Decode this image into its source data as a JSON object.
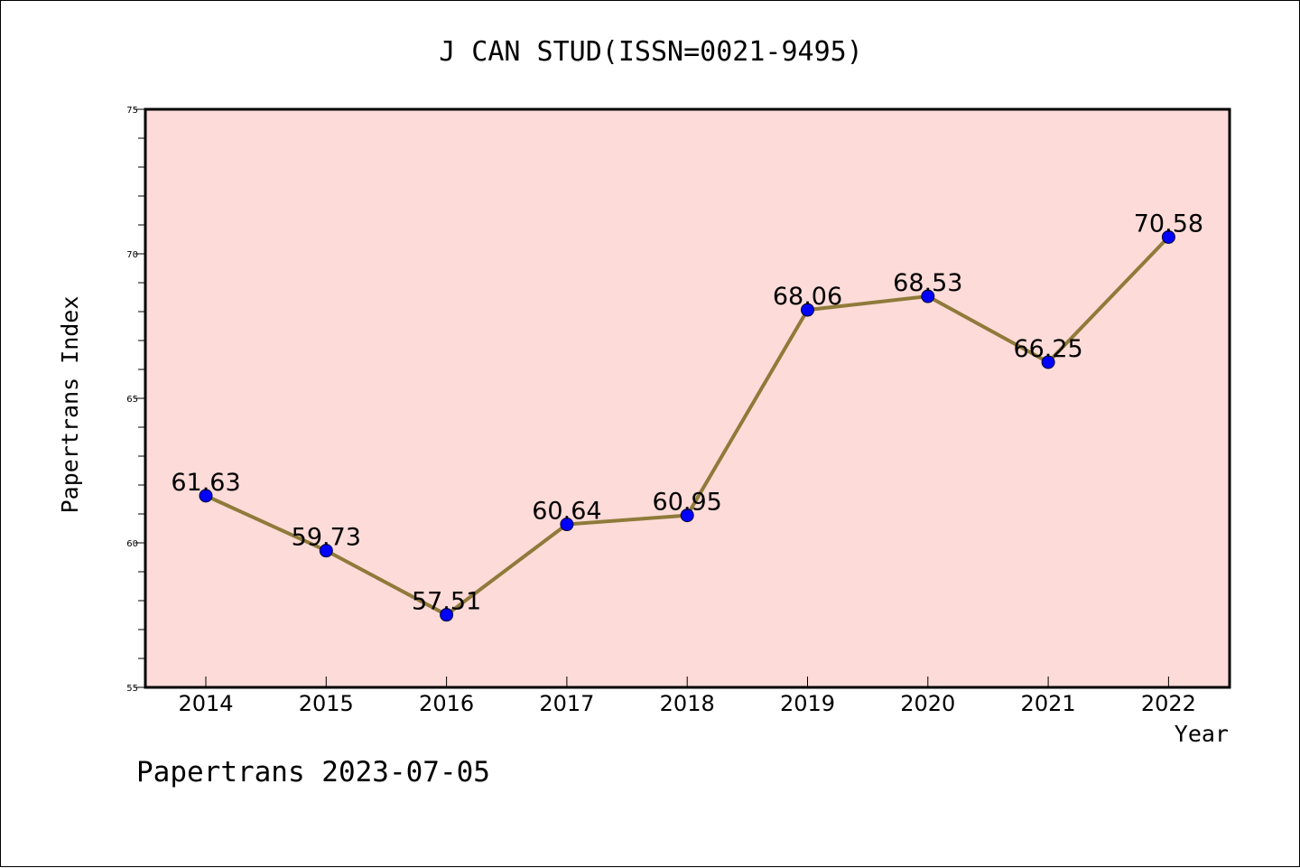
{
  "chart_data": {
    "type": "line",
    "title": "J CAN STUD(ISSN=0021-9495)",
    "xlabel": "Year",
    "ylabel": "Papertrans Index",
    "categories": [
      "2014",
      "2015",
      "2016",
      "2017",
      "2018",
      "2019",
      "2020",
      "2021",
      "2022"
    ],
    "values": [
      61.63,
      59.73,
      57.51,
      60.64,
      60.95,
      68.06,
      68.53,
      66.25,
      70.58
    ],
    "data_labels": [
      "61.63",
      "59.73",
      "57.51",
      "60.64",
      "60.95",
      "68.06",
      "68.53",
      "66.25",
      "70.58"
    ],
    "ylim": [
      55,
      75
    ],
    "yticks": [
      "55",
      "60",
      "65",
      "70",
      "75"
    ],
    "grid": false,
    "legend": "none",
    "colors": {
      "plot_background": "#fddbd8",
      "line": "#8f7a3a",
      "marker": "#0000ff"
    }
  },
  "footer": {
    "text": "Papertrans 2023-07-05"
  }
}
